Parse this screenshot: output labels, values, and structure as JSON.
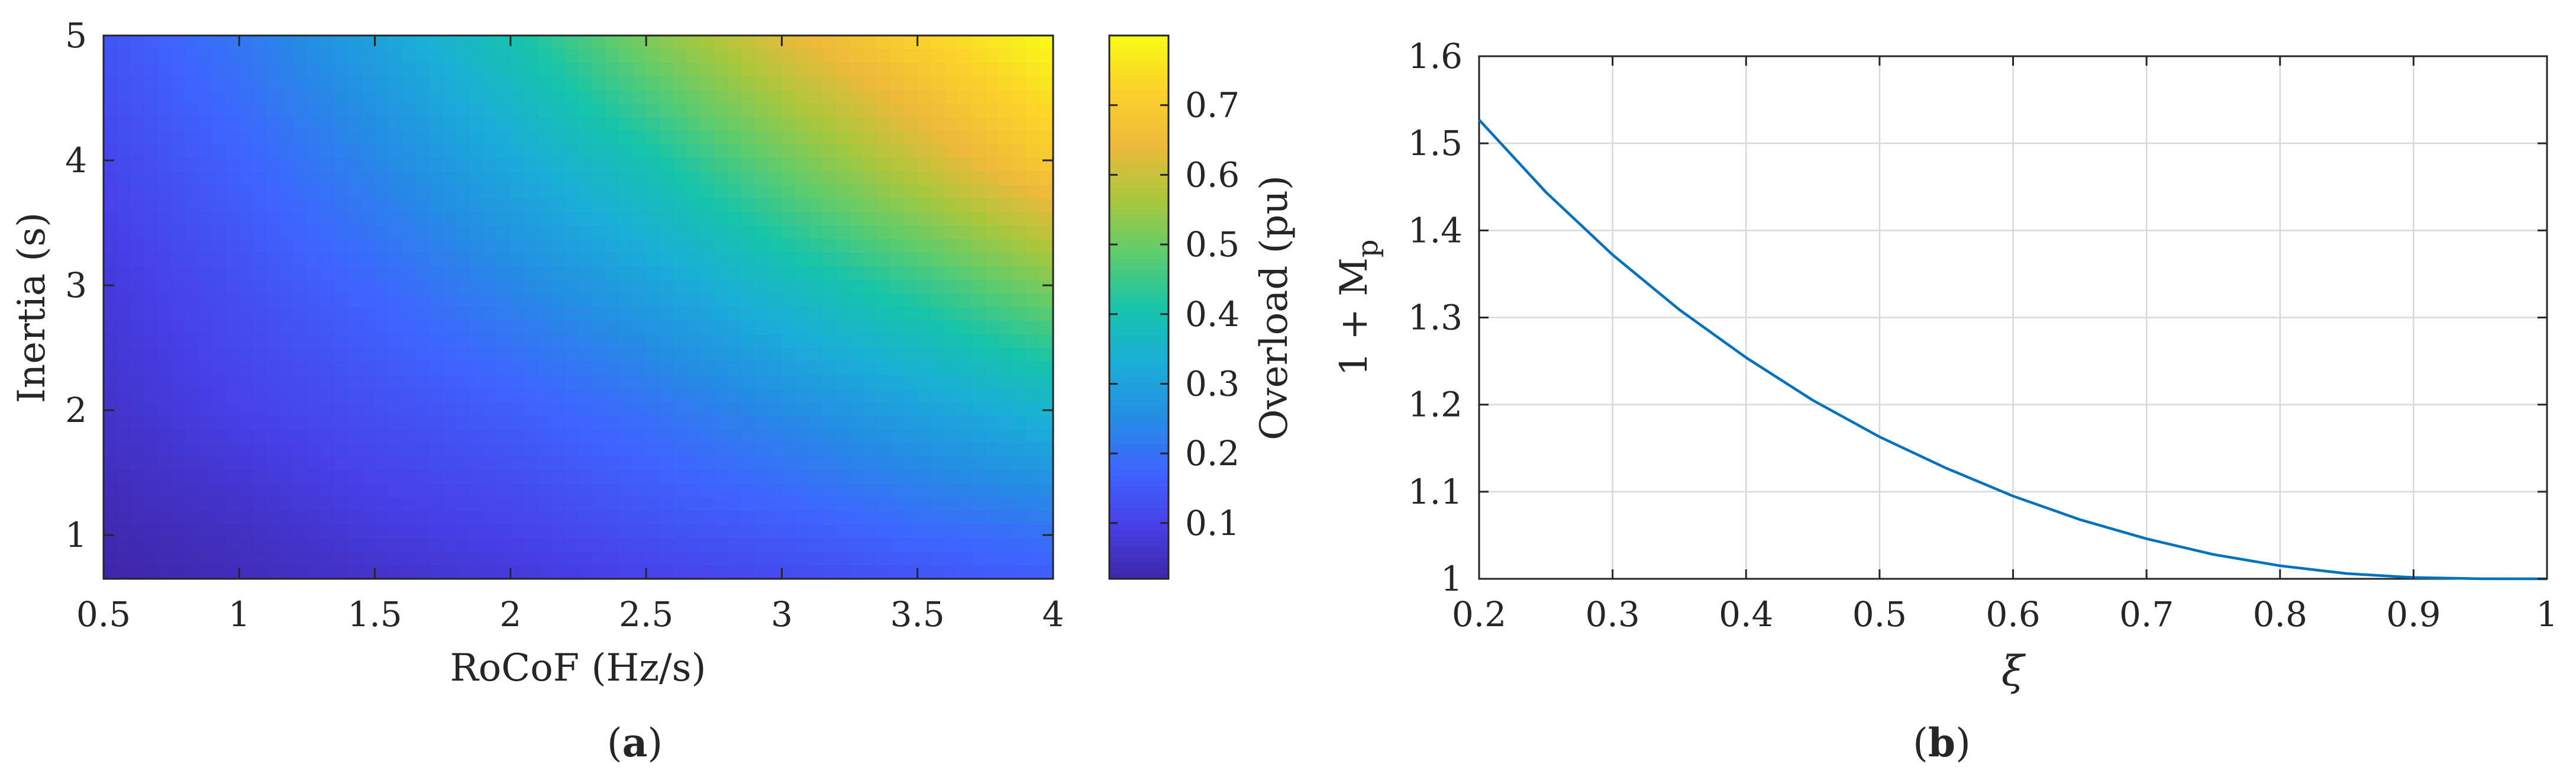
{
  "panels": {
    "a": {
      "caption_letter": "a",
      "caption_open": "(",
      "caption_close": ")"
    },
    "b": {
      "caption_letter": "b",
      "caption_open": "(",
      "caption_close": ")"
    }
  },
  "chart_data": [
    {
      "type": "heatmap",
      "title": "",
      "xlabel": "RoCoF (Hz/s)",
      "ylabel": "Inertia (s)",
      "xlim": [
        0.5,
        4
      ],
      "ylim": [
        0.65,
        5
      ],
      "x_ticks": [
        "0.5",
        "1",
        "1.5",
        "2",
        "2.5",
        "3",
        "3.5",
        "4"
      ],
      "y_ticks": [
        "1",
        "2",
        "3",
        "4",
        "5"
      ],
      "colorbar": {
        "label": "Overload (pu)",
        "range": [
          0.02,
          0.8
        ],
        "ticks": [
          "0.1",
          "0.2",
          "0.3",
          "0.4",
          "0.5",
          "0.6",
          "0.7"
        ],
        "colormap": "parula"
      },
      "grid_values": {
        "x": [
          0.5,
          1,
          1.5,
          2,
          2.5,
          3,
          3.5,
          4
        ],
        "y": [
          0.65,
          1,
          2,
          3,
          4,
          5
        ],
        "z": [
          [
            0.02,
            0.04,
            0.06,
            0.08,
            0.1,
            0.12,
            0.14,
            0.16
          ],
          [
            0.03,
            0.05,
            0.08,
            0.1,
            0.13,
            0.15,
            0.18,
            0.2
          ],
          [
            0.06,
            0.1,
            0.13,
            0.16,
            0.2,
            0.25,
            0.3,
            0.35
          ],
          [
            0.08,
            0.13,
            0.18,
            0.24,
            0.3,
            0.37,
            0.44,
            0.52
          ],
          [
            0.11,
            0.17,
            0.24,
            0.32,
            0.4,
            0.5,
            0.6,
            0.7
          ],
          [
            0.14,
            0.21,
            0.3,
            0.4,
            0.52,
            0.63,
            0.72,
            0.8
          ]
        ]
      }
    },
    {
      "type": "line",
      "title": "",
      "xlabel": "ξ",
      "ylabel_main": "1 + M",
      "ylabel_sub": "p",
      "xlim": [
        0.2,
        1
      ],
      "ylim": [
        1,
        1.6
      ],
      "x_ticks": [
        "0.2",
        "0.3",
        "0.4",
        "0.5",
        "0.6",
        "0.7",
        "0.8",
        "0.9",
        "1"
      ],
      "y_ticks": [
        "1",
        "1.1",
        "1.2",
        "1.3",
        "1.4",
        "1.5",
        "1.6"
      ],
      "grid": true,
      "line_color": "#0072bd",
      "series": [
        {
          "x": [
            0.2,
            0.25,
            0.3,
            0.35,
            0.4,
            0.45,
            0.5,
            0.55,
            0.6,
            0.65,
            0.7,
            0.75,
            0.8,
            0.85,
            0.9,
            0.95,
            1.0
          ],
          "values": [
            1.527,
            1.444,
            1.372,
            1.309,
            1.254,
            1.205,
            1.163,
            1.127,
            1.095,
            1.068,
            1.046,
            1.028,
            1.015,
            1.006,
            1.0015,
            1.0001,
            1.0
          ]
        }
      ]
    }
  ]
}
